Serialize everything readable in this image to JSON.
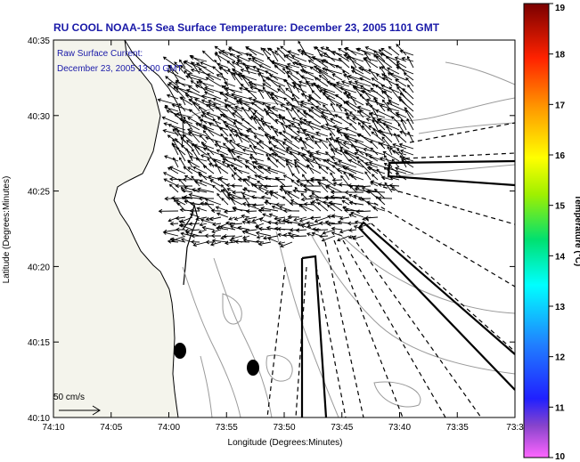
{
  "title": "RU COOL   NOAA-15  Sea Surface Temperature:  December 23, 2005 1101 GMT",
  "annotation": {
    "line1": "Raw Surface Current:",
    "line2": "December 23, 2005 13:00 GMT"
  },
  "scale_label": "50 cm/s",
  "axes": {
    "xlabel": "Longitude (Degrees:Minutes)",
    "ylabel": "Latitude (Degrees:Minutes)",
    "x_ticks": [
      "74:10",
      "74:05",
      "74:00",
      "73:55",
      "73:50",
      "73:45",
      "73:40",
      "73:35",
      "73:3"
    ],
    "y_ticks": [
      "40:35",
      "40:30",
      "40:25",
      "40:20",
      "40:15",
      "40:10"
    ]
  },
  "colorbar": {
    "label": "Temperature (°C)",
    "min": 10,
    "max": 19,
    "ticks": [
      "19",
      "18",
      "17",
      "16",
      "15",
      "14",
      "13",
      "12",
      "11",
      "10"
    ]
  },
  "colors": {
    "title": "#1a1aa8",
    "land": "#f4f4ec",
    "coast": "#000000",
    "bathymetry": "#9a9a9a"
  }
}
